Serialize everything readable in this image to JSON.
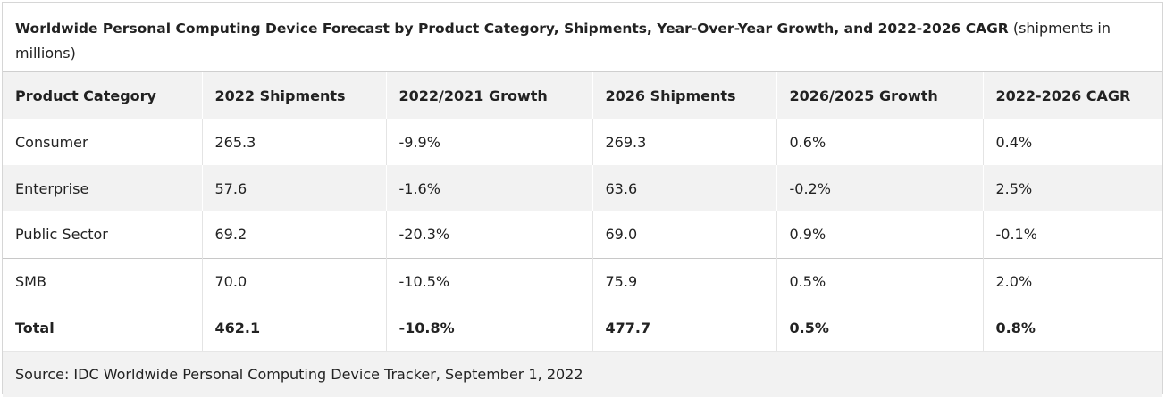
{
  "caption": {
    "title": "Worldwide Personal Computing Device Forecast by Product Category, Shipments, Year-Over-Year Growth, and 2022-2026 CAGR",
    "note": "(shipments in millions)"
  },
  "table": {
    "headers": [
      "Product Category",
      "2022 Shipments",
      "2022/2021 Growth",
      "2026 Shipments",
      "2026/2025 Growth",
      "2022-2026 CAGR"
    ],
    "rows": [
      [
        "Consumer",
        "265.3",
        "-9.9%",
        "269.3",
        "0.6%",
        "0.4%"
      ],
      [
        "Enterprise",
        "57.6",
        "-1.6%",
        "63.6",
        "-0.2%",
        "2.5%"
      ],
      [
        "Public Sector",
        "69.2",
        "-20.3%",
        "69.0",
        "0.9%",
        "-0.1%"
      ],
      [
        "SMB",
        "70.0",
        "-10.5%",
        "75.9",
        "0.5%",
        "2.0%"
      ],
      [
        "Total",
        "462.1",
        "-10.8%",
        "477.7",
        "0.5%",
        "0.8%"
      ]
    ]
  },
  "source": "Source: IDC Worldwide Personal Computing Device Tracker, September 1, 2022"
}
